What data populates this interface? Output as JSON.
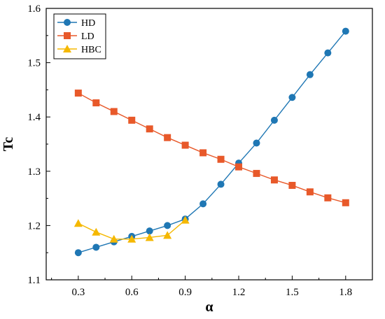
{
  "chart_data": {
    "type": "line",
    "xlabel": "α",
    "ylabel": "Tc",
    "xlim": [
      0.12,
      1.95
    ],
    "ylim": [
      1.1,
      1.6
    ],
    "xticks": [
      0.3,
      0.6,
      0.9,
      1.2,
      1.5,
      1.8
    ],
    "xtick_labels": [
      "0.3",
      "0.6",
      "0.9",
      "1.2",
      "1.5",
      "1.8"
    ],
    "yticks": [
      1.1,
      1.2,
      1.3,
      1.4,
      1.5,
      1.6
    ],
    "ytick_labels": [
      "1.1",
      "1.2",
      "1.3",
      "1.4",
      "1.5",
      "1.6"
    ],
    "legend_position": "top-left",
    "grid": false,
    "series": [
      {
        "name": "HD",
        "marker": "circle",
        "color": "#1f77b4",
        "x": [
          0.3,
          0.4,
          0.5,
          0.6,
          0.7,
          0.8,
          0.9,
          1.0,
          1.1,
          1.2,
          1.3,
          1.4,
          1.5,
          1.6,
          1.7,
          1.8
        ],
        "values": [
          1.15,
          1.16,
          1.17,
          1.18,
          1.19,
          1.2,
          1.212,
          1.24,
          1.276,
          1.315,
          1.352,
          1.394,
          1.436,
          1.478,
          1.518,
          1.558
        ]
      },
      {
        "name": "LD",
        "marker": "square",
        "color": "#e8592a",
        "x": [
          0.3,
          0.4,
          0.5,
          0.6,
          0.7,
          0.8,
          0.9,
          1.0,
          1.1,
          1.2,
          1.3,
          1.4,
          1.5,
          1.6,
          1.7,
          1.8
        ],
        "values": [
          1.444,
          1.426,
          1.41,
          1.394,
          1.378,
          1.362,
          1.348,
          1.334,
          1.322,
          1.308,
          1.296,
          1.284,
          1.274,
          1.262,
          1.251,
          1.242
        ]
      },
      {
        "name": "HBC",
        "marker": "triangle",
        "color": "#f5b800",
        "x": [
          0.3,
          0.4,
          0.5,
          0.6,
          0.7,
          0.8,
          0.9
        ],
        "values": [
          1.204,
          1.188,
          1.175,
          1.175,
          1.178,
          1.182,
          1.21
        ]
      }
    ]
  }
}
